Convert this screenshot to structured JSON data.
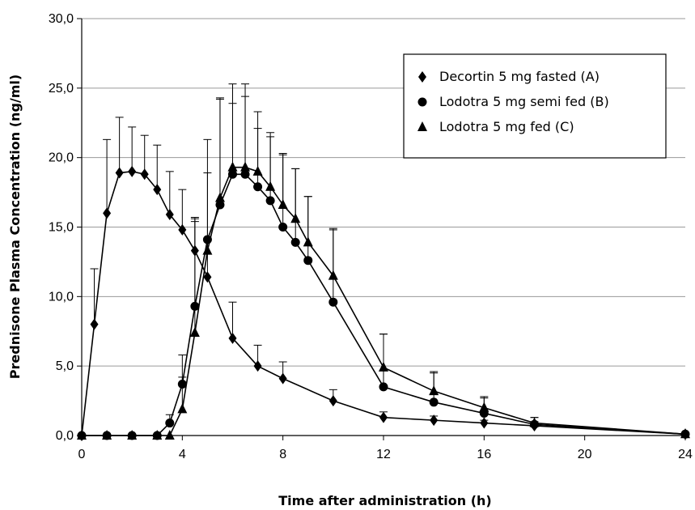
{
  "chart_data": {
    "type": "line",
    "title": "",
    "xlabel": "Time after administration (h)",
    "ylabel": "Prednisone Plasma Concentration (ng/ml)",
    "xlim": [
      0,
      24
    ],
    "ylim": [
      0,
      30
    ],
    "x_ticks": [
      0,
      4,
      8,
      12,
      16,
      20,
      24
    ],
    "x_tick_labels": [
      "0",
      "4",
      "8",
      "12",
      "16",
      "20",
      "24"
    ],
    "y_ticks": [
      0,
      5,
      10,
      15,
      20,
      25,
      30
    ],
    "y_tick_labels": [
      "0,0",
      "5,0",
      "10,0",
      "15,0",
      "20,0",
      "25,0",
      "30,0"
    ],
    "grid": "horizontal",
    "legend_position": "top-right",
    "series": [
      {
        "name": "Decortin 5 mg fasted (A)",
        "marker": "diamond",
        "x": [
          0,
          0.5,
          1,
          1.5,
          2,
          2.5,
          3,
          3.5,
          4,
          4.5,
          5,
          6,
          7,
          8,
          10,
          12,
          14,
          16,
          18,
          24
        ],
        "y": [
          0,
          8.0,
          16.0,
          18.9,
          19.0,
          18.8,
          17.7,
          15.9,
          14.8,
          13.3,
          11.4,
          7.0,
          5.0,
          4.1,
          2.5,
          1.3,
          1.1,
          0.9,
          0.7,
          0.1
        ],
        "error_upper": [
          null,
          12.0,
          21.3,
          22.9,
          22.2,
          21.6,
          20.9,
          19.0,
          17.7,
          15.7,
          14.1,
          9.6,
          6.5,
          5.3,
          3.3,
          1.7,
          1.4,
          1.1,
          1.0,
          0.2
        ]
      },
      {
        "name": "Lodotra 5 mg semi fed (B)",
        "marker": "circle",
        "x": [
          0,
          1,
          2,
          3,
          3.5,
          4,
          4.5,
          5,
          5.5,
          6,
          6.5,
          7,
          7.5,
          8,
          8.5,
          9,
          10,
          12,
          14,
          16,
          18,
          24
        ],
        "y": [
          0,
          0,
          0,
          0,
          0.9,
          3.7,
          9.3,
          14.1,
          16.6,
          18.8,
          18.8,
          17.9,
          16.9,
          15.0,
          13.9,
          12.6,
          9.6,
          3.5,
          2.4,
          1.6,
          0.8,
          0.1
        ],
        "error_upper": [
          null,
          null,
          null,
          null,
          1.5,
          5.8,
          15.6,
          21.3,
          24.2,
          23.9,
          24.4,
          22.1,
          21.5,
          20.3,
          19.2,
          17.2,
          14.8,
          7.3,
          4.5,
          2.7,
          1.3,
          0.2
        ]
      },
      {
        "name": "Lodotra 5 mg fed (C)",
        "marker": "triangle",
        "x": [
          0,
          1,
          2,
          3,
          3.5,
          4,
          4.5,
          5,
          5.5,
          6,
          6.5,
          7,
          7.5,
          8,
          8.5,
          9,
          10,
          12,
          14,
          16,
          18,
          24
        ],
        "y": [
          0,
          0,
          0,
          0,
          0,
          1.9,
          7.4,
          13.3,
          17.1,
          19.3,
          19.3,
          19.0,
          17.9,
          16.6,
          15.6,
          13.9,
          11.5,
          4.9,
          3.2,
          2.0,
          0.9,
          0.1
        ],
        "error_upper": [
          null,
          null,
          null,
          null,
          null,
          4.2,
          15.4,
          18.9,
          24.3,
          25.3,
          25.3,
          23.3,
          21.8,
          20.2,
          19.2,
          17.2,
          14.9,
          7.3,
          4.6,
          2.8,
          1.3,
          0.2
        ]
      }
    ]
  }
}
